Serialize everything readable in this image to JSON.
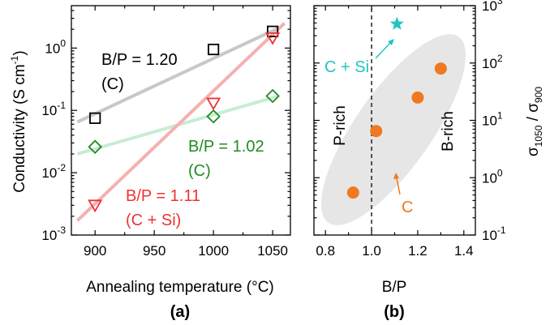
{
  "chart_data": [
    {
      "panel": "(a)",
      "type": "scatter",
      "xlabel": "Annealing temperature (°C)",
      "ylabel": "Conductivity (S cm",
      "ylabel_sup": "-1",
      "ylabel_end": ")",
      "xlim": [
        880,
        1065
      ],
      "ylim_log10": [
        -3,
        0.68
      ],
      "xticks": [
        900,
        950,
        1000,
        1050
      ],
      "xtick_labels": [
        "900",
        "950",
        "1000",
        "1050"
      ],
      "yticks_exp": [
        -3,
        -2,
        -1,
        0
      ],
      "ytick_base": "10",
      "series": [
        {
          "marker": "square",
          "color": "#000000",
          "line_color": "#c8c8c8",
          "label_line1": "B/P = 1.20",
          "label_line2": "(C)",
          "x": [
            900,
            1000,
            1050
          ],
          "y": [
            0.075,
            0.95,
            1.85
          ],
          "fit_x": [
            885,
            1055
          ],
          "fit_y": [
            0.065,
            2.1
          ]
        },
        {
          "marker": "diamond",
          "color": "#228b22",
          "line_color": "#c8ecd6",
          "label_line1": "B/P = 1.02",
          "label_line2": "(C)",
          "x": [
            900,
            1000,
            1050
          ],
          "y": [
            0.026,
            0.08,
            0.17
          ],
          "fit_x": [
            885,
            1055
          ],
          "fit_y": [
            0.02,
            0.17
          ]
        },
        {
          "marker": "triangle-down",
          "color": "#ee3333",
          "line_color": "#f5b0b0",
          "label_line1": "B/P = 1.11",
          "label_line2": "(C + Si)",
          "x": [
            900,
            1000,
            1050
          ],
          "y": [
            0.003,
            0.13,
            1.45
          ],
          "fit_x": [
            885,
            1060
          ],
          "fit_y": [
            0.0017,
            2.5
          ]
        }
      ]
    },
    {
      "panel": "(b)",
      "type": "scatter",
      "xlabel": "B/P",
      "ylabel_right_main": "σ",
      "ylabel_right_sub1": "1050",
      "ylabel_right_mid": " / σ",
      "ylabel_right_sub2": "900",
      "xlim": [
        0.75,
        1.45
      ],
      "ylim_log10": [
        -1,
        3
      ],
      "xticks": [
        0.8,
        1.0,
        1.2,
        1.4
      ],
      "xtick_labels": [
        "0.8",
        "1.0",
        "1.2",
        "1.4"
      ],
      "yticks_exp": [
        -1,
        0,
        1,
        2,
        3
      ],
      "ytick_base": "10",
      "divider_x": 1.0,
      "region_left": "P-rich",
      "region_right": "B-rich",
      "points_c": {
        "x": [
          0.92,
          1.02,
          1.2,
          1.3
        ],
        "y": [
          0.55,
          6.5,
          25,
          80
        ],
        "color": "#f07820",
        "label": "C"
      },
      "points_csi": {
        "x": [
          1.11
        ],
        "y": [
          480
        ],
        "color": "#22c4c4",
        "label": "C + Si"
      }
    }
  ],
  "captions": [
    "(a)",
    "(b)"
  ]
}
